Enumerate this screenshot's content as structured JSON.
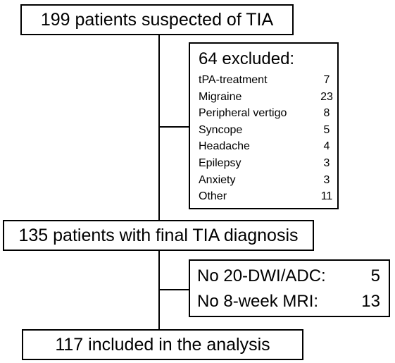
{
  "top_box": {
    "text": "199 patients suspected of TIA"
  },
  "excluded": {
    "title": "64 excluded:",
    "items": [
      {
        "label": "tPA-treatment",
        "count": "7"
      },
      {
        "label": "Migraine",
        "count": "23"
      },
      {
        "label": "Peripheral vertigo",
        "count": "8"
      },
      {
        "label": "Syncope",
        "count": "5"
      },
      {
        "label": "Headache",
        "count": "4"
      },
      {
        "label": "Epilepsy",
        "count": "3"
      },
      {
        "label": "Anxiety",
        "count": "3"
      },
      {
        "label": "Other",
        "count": "11"
      }
    ]
  },
  "middle_box": {
    "text": "135 patients with final TIA diagnosis"
  },
  "mri_excluded": {
    "items": [
      {
        "label": "No 20-DWI/ADC:",
        "count": "5"
      },
      {
        "label": "No 8-week MRI:",
        "count": "13"
      }
    ]
  },
  "bottom_box": {
    "text": "117 included in the analysis"
  },
  "colors": {
    "line": "#000000",
    "background": "#ffffff"
  }
}
